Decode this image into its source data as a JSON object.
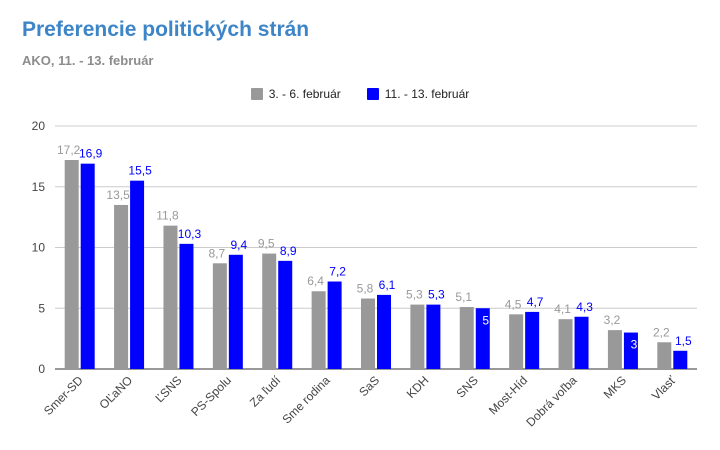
{
  "chart_data": {
    "type": "bar",
    "title": "Preferencie politických strán",
    "subtitle": "AKO, 11. - 13. február",
    "categories": [
      "Smer-SD",
      "OĽaNO",
      "ĽSNS",
      "PS-Spolu",
      "Za ľudí",
      "Sme rodina",
      "SaS",
      "KDH",
      "SNS",
      "Most-Híd",
      "Dobrá voľba",
      "MKS",
      "Vlasť"
    ],
    "series": [
      {
        "name": "3. - 6. február",
        "color": "#999999",
        "label_color": "#999999",
        "values": [
          17.2,
          13.5,
          11.8,
          8.7,
          9.5,
          6.4,
          5.8,
          5.3,
          5.1,
          4.5,
          4.1,
          3.2,
          2.2
        ],
        "labels": [
          "17,2",
          "13,5",
          "11,8",
          "8,7",
          "9,5",
          "6,4",
          "5,8",
          "5,3",
          "5,1",
          "4,5",
          "4,1",
          "3,2",
          "2,2"
        ]
      },
      {
        "name": "11. - 13. február",
        "color": "#0000ff",
        "label_color": "#0000ff",
        "values": [
          16.9,
          15.5,
          10.3,
          9.4,
          8.9,
          7.2,
          6.1,
          5.3,
          5.0,
          4.7,
          4.3,
          3.0,
          1.5
        ],
        "labels": [
          "16,9",
          "15,5",
          "10,3",
          "9,4",
          "8,9",
          "7,2",
          "6,1",
          "5,3",
          "5",
          "4,7",
          "4,3",
          "3",
          "1,5"
        ]
      }
    ],
    "ylim": [
      0,
      20
    ],
    "yticks": [
      "0",
      "5",
      "10",
      "15",
      "20"
    ],
    "grid": true,
    "legend_position": "top-center",
    "inside_labels": {
      "1": [
        8,
        11
      ]
    }
  }
}
